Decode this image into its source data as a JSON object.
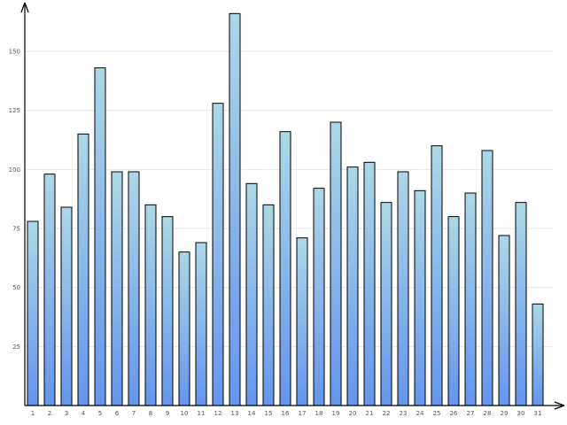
{
  "chart_data": {
    "type": "bar",
    "categories": [
      "1",
      "2",
      "3",
      "4",
      "5",
      "6",
      "7",
      "8",
      "9",
      "10",
      "11",
      "12",
      "13",
      "14",
      "15",
      "16",
      "17",
      "18",
      "19",
      "20",
      "21",
      "22",
      "23",
      "24",
      "25",
      "26",
      "27",
      "28",
      "29",
      "30",
      "31"
    ],
    "values": [
      78,
      98,
      84,
      115,
      143,
      99,
      99,
      85,
      80,
      65,
      69,
      128,
      166,
      94,
      85,
      116,
      71,
      92,
      120,
      101,
      103,
      86,
      99,
      91,
      110,
      80,
      90,
      108,
      72,
      86,
      43
    ],
    "yticks": [
      25,
      50,
      75,
      100,
      125,
      150
    ],
    "ylim": [
      0,
      168
    ],
    "title": "",
    "xlabel": "",
    "ylabel": "",
    "grid": true,
    "colors": {
      "bar_top": "#add8e6",
      "bar_bottom": "#6495ed",
      "grid": "#e6e6e6",
      "axis": "#000000"
    }
  }
}
